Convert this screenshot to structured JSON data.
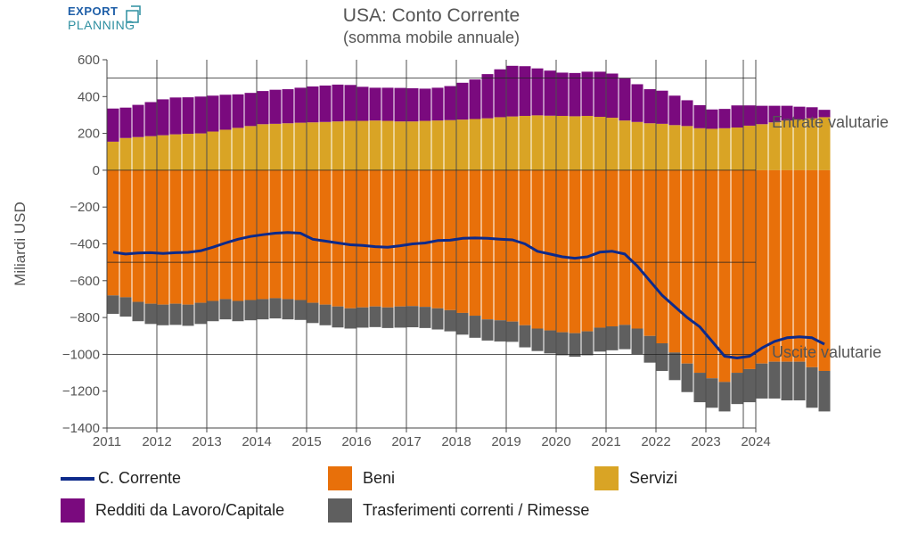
{
  "header": {
    "logo_line1": "EXPORT",
    "logo_line2": "PLANNING",
    "title": "USA: Conto Corrente",
    "subtitle": "(somma mobile annuale)"
  },
  "side_labels": {
    "entrate": "Entrate valutarie",
    "uscite": "Uscite valutarie"
  },
  "colors": {
    "beni": "#e8700a",
    "servizi": "#d9a425",
    "redditi": "#7a0a7e",
    "trasferimenti": "#5f5f5f",
    "corrente": "#0d2a8a"
  },
  "chart_data": {
    "type": "bar",
    "title": "USA: Conto Corrente",
    "subtitle": "(somma mobile annuale)",
    "ylabel": "Miliardi USD",
    "ylim": [
      -1400,
      600
    ],
    "yticks": [
      600,
      400,
      200,
      0,
      -200,
      -400,
      -600,
      -800,
      -1000,
      -1200,
      -1400
    ],
    "ytick_labels": [
      "600",
      "400",
      "200",
      "0",
      "−200",
      "−400",
      "−600",
      "−800",
      "−1000",
      "−1200",
      "−1400"
    ],
    "xlim": [
      2011,
      2024
    ],
    "xticks": [
      "2011",
      "2012",
      "2013",
      "2014",
      "2015",
      "2016",
      "2017",
      "2018",
      "2019",
      "2020",
      "2021",
      "2022",
      "2023",
      "2024"
    ],
    "x_start": 2011.0,
    "x_step": 0.25,
    "series": [
      {
        "name": "Servizi",
        "values": [
          155,
          175,
          180,
          185,
          190,
          195,
          198,
          200,
          210,
          220,
          230,
          240,
          250,
          252,
          255,
          258,
          260,
          262,
          265,
          268,
          268,
          270,
          268,
          265,
          265,
          268,
          270,
          272,
          275,
          278,
          282,
          288,
          292,
          295,
          298,
          296,
          295,
          293,
          295,
          290,
          285,
          270,
          262,
          255,
          252,
          245,
          240,
          228,
          225,
          228,
          232,
          242,
          250,
          260,
          270,
          275,
          282,
          288
        ]
      },
      {
        "name": "Redditi da Lavoro/Capitale",
        "values": [
          180,
          165,
          175,
          185,
          195,
          200,
          198,
          200,
          195,
          190,
          182,
          180,
          180,
          185,
          185,
          190,
          195,
          198,
          200,
          195,
          185,
          178,
          180,
          182,
          180,
          175,
          178,
          185,
          200,
          215,
          240,
          260,
          275,
          270,
          255,
          245,
          235,
          235,
          240,
          245,
          240,
          230,
          205,
          185,
          180,
          160,
          140,
          125,
          105,
          105,
          120,
          110,
          100,
          90,
          80,
          70,
          60,
          40
        ]
      },
      {
        "name": "Beni",
        "values": [
          -680,
          -690,
          -715,
          -725,
          -730,
          -725,
          -730,
          -720,
          -710,
          -700,
          -710,
          -705,
          -700,
          -695,
          -700,
          -705,
          -720,
          -730,
          -740,
          -750,
          -745,
          -740,
          -745,
          -740,
          -738,
          -742,
          -750,
          -760,
          -775,
          -790,
          -810,
          -815,
          -822,
          -842,
          -860,
          -870,
          -880,
          -885,
          -875,
          -855,
          -848,
          -840,
          -860,
          -900,
          -940,
          -990,
          -1050,
          -1100,
          -1130,
          -1150,
          -1100,
          -1080,
          -1050,
          -1040,
          -1040,
          -1040,
          -1070,
          -1090
        ]
      },
      {
        "name": "Trasferimenti correnti / Rimesse",
        "values": [
          -100,
          -105,
          -105,
          -110,
          -112,
          -115,
          -115,
          -115,
          -110,
          -110,
          -110,
          -110,
          -110,
          -110,
          -110,
          -108,
          -110,
          -112,
          -114,
          -110,
          -110,
          -112,
          -112,
          -115,
          -115,
          -115,
          -115,
          -115,
          -118,
          -120,
          -115,
          -115,
          -110,
          -120,
          -122,
          -125,
          -125,
          -128,
          -130,
          -130,
          -130,
          -132,
          -138,
          -145,
          -150,
          -150,
          -155,
          -160,
          -160,
          -160,
          -170,
          -180,
          -190,
          -200,
          -210,
          -210,
          -220,
          -220
        ]
      },
      {
        "name": "C. Corrente",
        "values": [
          -445,
          -455,
          -450,
          -448,
          -452,
          -448,
          -446,
          -438,
          -418,
          -395,
          -375,
          -360,
          -350,
          -342,
          -338,
          -342,
          -375,
          -385,
          -395,
          -405,
          -408,
          -415,
          -418,
          -410,
          -400,
          -395,
          -382,
          -380,
          -370,
          -368,
          -370,
          -375,
          -378,
          -400,
          -440,
          -455,
          -470,
          -478,
          -470,
          -445,
          -440,
          -455,
          -520,
          -600,
          -680,
          -740,
          -800,
          -850,
          -930,
          -1010,
          -1020,
          -1010,
          -965,
          -930,
          -910,
          -905,
          -910,
          -945
        ]
      }
    ]
  },
  "legend": [
    {
      "label": "C. Corrente",
      "kind": "line",
      "color": "#0d2a8a"
    },
    {
      "label": "Beni",
      "kind": "box",
      "color": "#e8700a"
    },
    {
      "label": "Servizi",
      "kind": "box",
      "color": "#d9a425"
    },
    {
      "label": "Redditi da Lavoro/Capitale",
      "kind": "box",
      "color": "#7a0a7e"
    },
    {
      "label": "Trasferimenti correnti / Rimesse",
      "kind": "box",
      "color": "#5f5f5f"
    }
  ]
}
